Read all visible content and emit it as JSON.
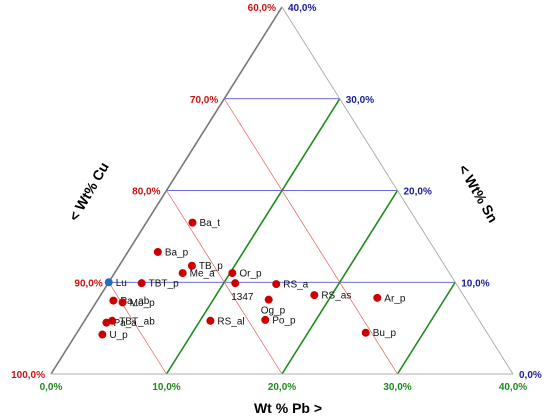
{
  "chart_data": {
    "type": "scatter",
    "subtype": "ternary",
    "title": "",
    "axes": {
      "pb": {
        "label": "Wt % Pb >",
        "range": [
          0,
          40
        ],
        "ticks": [
          "0,0%",
          "10,0%",
          "20,0%",
          "30,0%",
          "40,0%"
        ],
        "color": "#1e8a1e"
      },
      "cu": {
        "label": "< Wt% Cu",
        "range": [
          60,
          100
        ],
        "ticks": [
          "60,0%",
          "70,0%",
          "80,0%",
          "90,0%",
          "100,0%"
        ],
        "color": "#cc1111"
      },
      "sn": {
        "label": "< Wt% Sn",
        "range": [
          0,
          40
        ],
        "ticks": [
          "0,0%",
          "10,0%",
          "20,0%",
          "30,0%",
          "40,0%"
        ],
        "color": "#1a1aa0"
      }
    },
    "grid": true,
    "point_color": "#cc0000",
    "reference_color": "#1f6fc4",
    "points": [
      {
        "label": "Lu",
        "pb": 0.0,
        "sn": 10.0,
        "reference": true
      },
      {
        "label": "Ba_t",
        "pb": 4.0,
        "sn": 16.5
      },
      {
        "label": "Ba_p",
        "pb": 2.6,
        "sn": 13.3
      },
      {
        "label": "TB_p",
        "pb": 6.3,
        "sn": 11.8
      },
      {
        "label": "Me_a",
        "pb": 5.9,
        "sn": 11.0
      },
      {
        "label": "TBT_p",
        "pb": 2.9,
        "sn": 9.9
      },
      {
        "label": "Or_p",
        "pb": 10.2,
        "sn": 11.0
      },
      {
        "label": "1347",
        "pb": 11.0,
        "sn": 9.9
      },
      {
        "label": "RS_a",
        "pb": 14.6,
        "sn": 9.8
      },
      {
        "label": "Og_p",
        "pb": 14.8,
        "sn": 8.1
      },
      {
        "label": "RS_as",
        "pb": 18.5,
        "sn": 8.6
      },
      {
        "label": "Ar_p",
        "pb": 24.1,
        "sn": 8.3
      },
      {
        "label": "Pa_ab",
        "pb": 1.4,
        "sn": 8.0
      },
      {
        "label": "Mo_p",
        "pb": 2.3,
        "sn": 7.8
      },
      {
        "label": "Pa_a",
        "pb": 2.0,
        "sn": 5.6
      },
      {
        "label": "TBT_ab",
        "pb": 2.4,
        "sn": 5.8
      },
      {
        "label": "U_p",
        "pb": 2.3,
        "sn": 4.3
      },
      {
        "label": "RS_al",
        "pb": 10.9,
        "sn": 5.8
      },
      {
        "label": "Po_p",
        "pb": 15.6,
        "sn": 5.9
      },
      {
        "label": "Bu_p",
        "pb": 25.0,
        "sn": 4.5
      }
    ]
  }
}
